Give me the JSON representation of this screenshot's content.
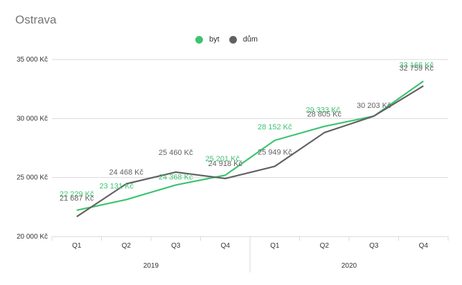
{
  "chart_data": {
    "type": "line",
    "title": "Ostrava",
    "quarters": [
      "Q1",
      "Q2",
      "Q3",
      "Q4",
      "Q1",
      "Q2",
      "Q3",
      "Q4"
    ],
    "years": [
      "2019",
      "2020"
    ],
    "ylim": [
      20000,
      35000
    ],
    "yticks": [
      20000,
      25000,
      30000,
      35000
    ],
    "ytick_labels": [
      "20 000 Kč",
      "25 000 Kč",
      "30 000 Kč",
      "35 000 Kč"
    ],
    "grid": true,
    "legend_position": "top-center",
    "series": [
      {
        "name": "byt",
        "color": "#3cc46f",
        "values": [
          22229,
          23131,
          24368,
          25201,
          28152,
          29333,
          30203,
          33166
        ],
        "labels": [
          "22 229 Kč",
          "23 131 Kč",
          "24 368 Kč",
          "25 201 Kč",
          "28 152 Kč",
          "29 333 Kč",
          "",
          "33 166 Kč"
        ]
      },
      {
        "name": "dům",
        "color": "#616161",
        "values": [
          21687,
          24468,
          25460,
          24918,
          25949,
          28805,
          30203,
          32759
        ],
        "labels": [
          "21 687 Kč",
          "24 468 Kč",
          "25 460 Kč",
          "24 918 Kč",
          "25 949 Kč",
          "28 805 Kč",
          "30 203 Kč",
          "32 759 Kč"
        ]
      }
    ]
  }
}
